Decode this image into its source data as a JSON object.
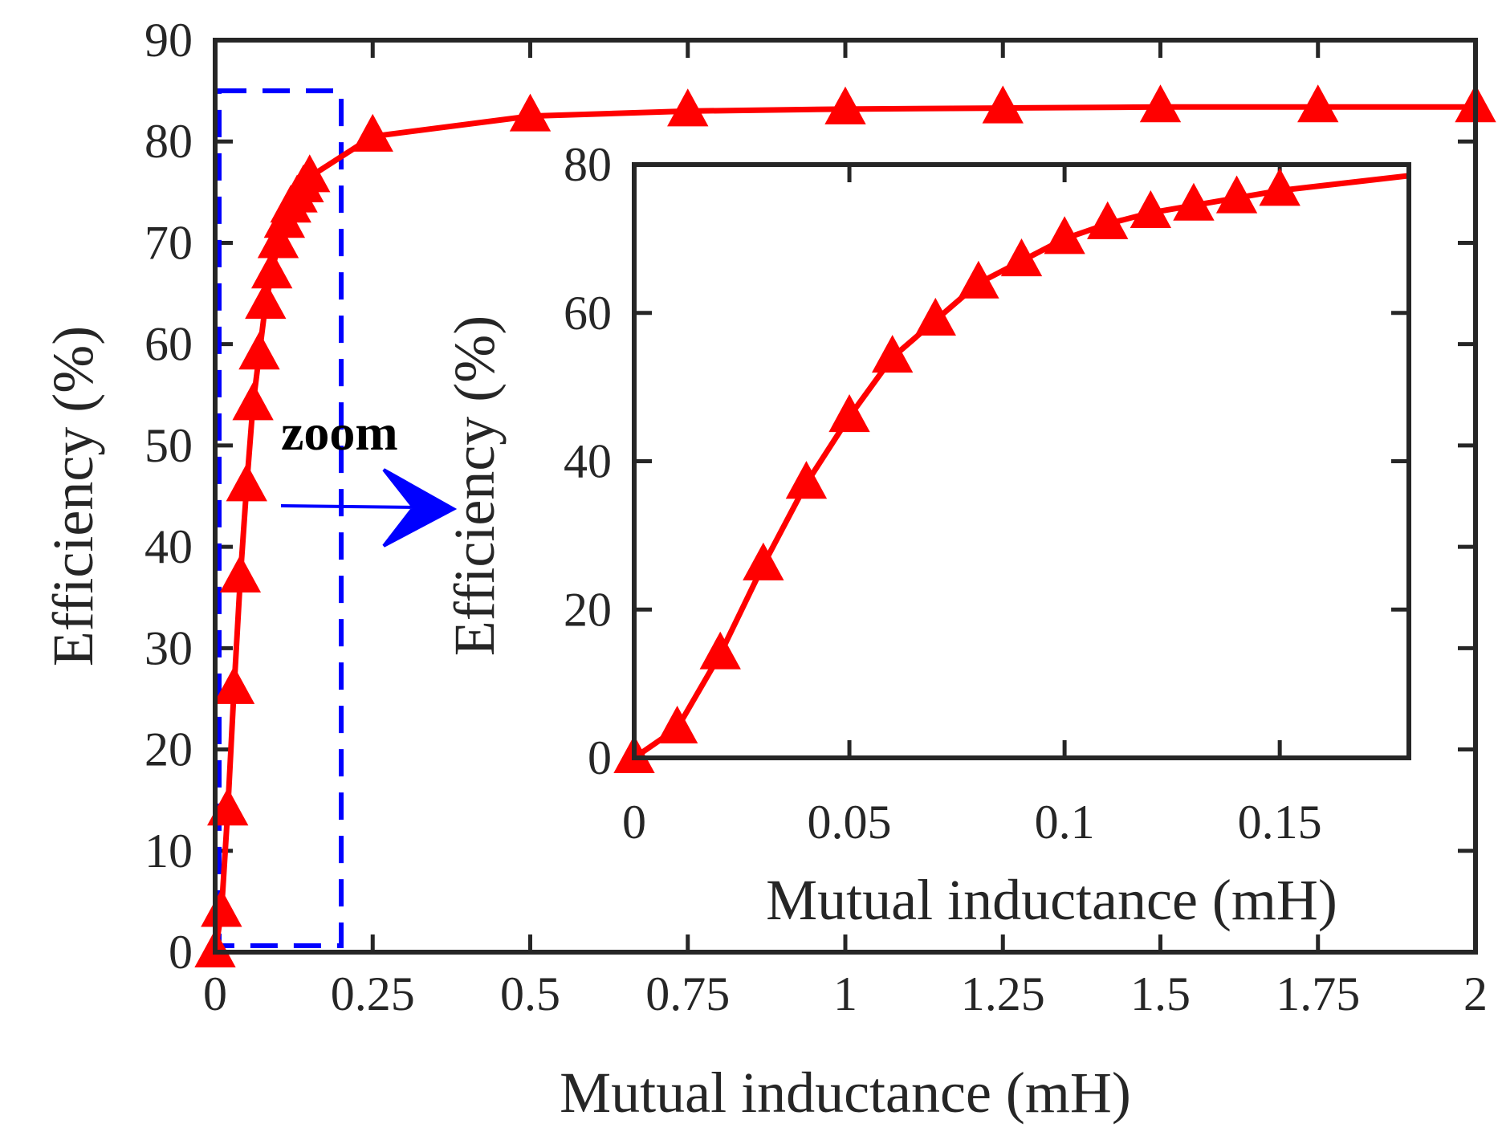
{
  "chart_data": [
    {
      "type": "line",
      "name": "main",
      "xlabel": "Mutual inductance (mH)",
      "ylabel": "Efficiency (%)",
      "xlim": [
        0,
        2
      ],
      "ylim": [
        0,
        90
      ],
      "xticks": [
        0,
        0.25,
        0.5,
        0.75,
        1,
        1.25,
        1.5,
        1.75,
        2
      ],
      "xtick_labels": [
        "0",
        "0.25",
        "0.5",
        "0.75",
        "1",
        "1.25",
        "1.5",
        "1.75",
        "2"
      ],
      "yticks": [
        0,
        10,
        20,
        30,
        40,
        50,
        60,
        70,
        80,
        90
      ],
      "ytick_labels": [
        "0",
        "10",
        "20",
        "30",
        "40",
        "50",
        "60",
        "70",
        "80",
        "90"
      ],
      "series": [
        {
          "name": "Efficiency",
          "color": "#ff0000",
          "marker": "triangle",
          "x": [
            0,
            0.01,
            0.02,
            0.03,
            0.04,
            0.05,
            0.06,
            0.07,
            0.08,
            0.09,
            0.1,
            0.11,
            0.12,
            0.13,
            0.14,
            0.15,
            0.25,
            0.5,
            0.75,
            1.0,
            1.25,
            1.5,
            1.75,
            2.0
          ],
          "y": [
            0,
            4,
            14,
            26,
            37,
            46,
            54,
            59,
            64,
            67,
            70,
            72,
            73.5,
            74.5,
            75.5,
            76.5,
            80.5,
            82.5,
            83,
            83.2,
            83.3,
            83.4,
            83.4,
            83.4
          ]
        }
      ],
      "zoom_region": {
        "x": [
          0,
          0.2
        ],
        "y": [
          0,
          85
        ]
      }
    },
    {
      "type": "line",
      "name": "inset",
      "xlabel": "Mutual inductance (mH)",
      "ylabel": "Efficiency (%)",
      "xlim": [
        0,
        0.18
      ],
      "ylim": [
        0,
        80
      ],
      "xticks": [
        0,
        0.05,
        0.1,
        0.15
      ],
      "xtick_labels": [
        "0",
        "0.05",
        "0.1",
        "0.15"
      ],
      "yticks": [
        0,
        20,
        40,
        60,
        80
      ],
      "ytick_labels": [
        "0",
        "20",
        "40",
        "60",
        "80"
      ],
      "series": [
        {
          "name": "Efficiency",
          "color": "#ff0000",
          "marker": "triangle",
          "x": [
            0,
            0.01,
            0.02,
            0.03,
            0.04,
            0.05,
            0.06,
            0.07,
            0.08,
            0.09,
            0.1,
            0.11,
            0.12,
            0.13,
            0.14,
            0.15,
            0.18
          ],
          "y": [
            0,
            4,
            14,
            26,
            37,
            46,
            54,
            59,
            64,
            67,
            70,
            72,
            73.5,
            74.5,
            75.5,
            76.5,
            78.5
          ],
          "marker_count": 16
        }
      ]
    }
  ],
  "annotation": {
    "text": "zoom"
  },
  "colors": {
    "axis": "#262626",
    "series": "#ff0000",
    "zoom": "#0000ff"
  }
}
